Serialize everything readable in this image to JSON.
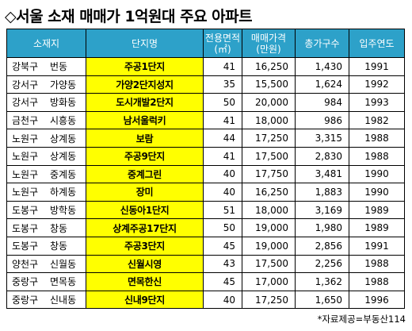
{
  "title": "◇서울 소재 매매가 1억원대 주요 아파트",
  "headers": {
    "location": "소재지",
    "complex": "단지명",
    "area_line1": "전용면적",
    "area_line2": "(㎡)",
    "price_line1": "매매가격",
    "price_line2": "(만원)",
    "households": "총가구수",
    "year": "입주연도"
  },
  "rows": [
    {
      "gu": "강북구",
      "dong": "번동",
      "name": "주공1단지",
      "area": "41",
      "price": "16,250",
      "households": "1,430",
      "year": "1991"
    },
    {
      "gu": "강서구",
      "dong": "가양동",
      "name": "가양2단지성지",
      "area": "35",
      "price": "15,500",
      "households": "1,624",
      "year": "1992"
    },
    {
      "gu": "강서구",
      "dong": "방화동",
      "name": "도시개발2단지",
      "area": "50",
      "price": "20,000",
      "households": "984",
      "year": "1993"
    },
    {
      "gu": "금천구",
      "dong": "시흥동",
      "name": "남서울럭키",
      "area": "41",
      "price": "18,000",
      "households": "986",
      "year": "1982"
    },
    {
      "gu": "노원구",
      "dong": "상계동",
      "name": "보람",
      "area": "44",
      "price": "17,250",
      "households": "3,315",
      "year": "1988"
    },
    {
      "gu": "노원구",
      "dong": "상계동",
      "name": "주공9단지",
      "area": "41",
      "price": "17,500",
      "households": "2,830",
      "year": "1988"
    },
    {
      "gu": "노원구",
      "dong": "중계동",
      "name": "중계그린",
      "area": "40",
      "price": "17,750",
      "households": "3,481",
      "year": "1990"
    },
    {
      "gu": "노원구",
      "dong": "하계동",
      "name": "장미",
      "area": "40",
      "price": "16,250",
      "households": "1,883",
      "year": "1990"
    },
    {
      "gu": "도봉구",
      "dong": "방학동",
      "name": "신동아1단지",
      "area": "51",
      "price": "18,000",
      "households": "3,169",
      "year": "1989"
    },
    {
      "gu": "도봉구",
      "dong": "창동",
      "name": "상계주공17단지",
      "area": "50",
      "price": "19,000",
      "households": "1,980",
      "year": "1989"
    },
    {
      "gu": "도봉구",
      "dong": "창동",
      "name": "주공3단지",
      "area": "45",
      "price": "19,000",
      "households": "2,856",
      "year": "1991"
    },
    {
      "gu": "양천구",
      "dong": "신월동",
      "name": "신월시영",
      "area": "43",
      "price": "17,500",
      "households": "2,256",
      "year": "1988"
    },
    {
      "gu": "중랑구",
      "dong": "면목동",
      "name": "면목한신",
      "area": "45",
      "price": "17,000",
      "households": "1,362",
      "year": "1988"
    },
    {
      "gu": "중랑구",
      "dong": "신내동",
      "name": "신내9단지",
      "area": "40",
      "price": "17,250",
      "households": "1,650",
      "year": "1996"
    }
  ],
  "source": "*자료제공=부동산114",
  "colors": {
    "header_bg": "#2da1c9",
    "header_text": "#ffffff",
    "name_bg": "#ffff00"
  }
}
